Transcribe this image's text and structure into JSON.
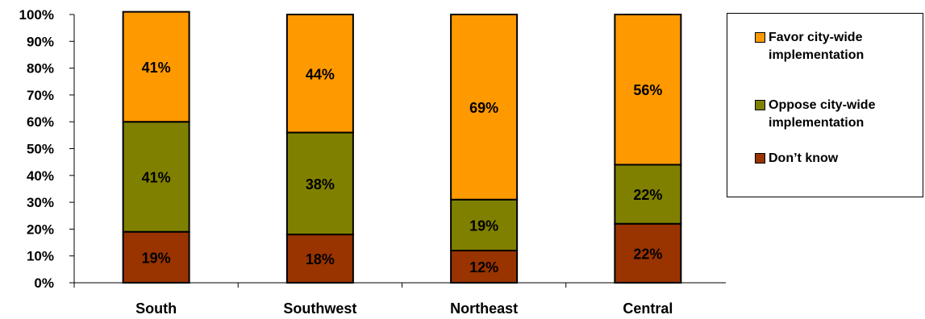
{
  "chart_data": {
    "type": "bar",
    "stacked": true,
    "categories": [
      "South",
      "Southwest",
      "Northeast",
      "Central"
    ],
    "series": [
      {
        "name": "Don’t know",
        "values": [
          19,
          18,
          12,
          22
        ],
        "labels": [
          "19%",
          "18%",
          "12%",
          "22%"
        ],
        "color": "#993300"
      },
      {
        "name": "Oppose city-wide implementation",
        "values": [
          41,
          38,
          19,
          22
        ],
        "labels": [
          "41%",
          "38%",
          "19%",
          "22%"
        ],
        "color": "#808000"
      },
      {
        "name": "Favor city-wide implementation",
        "values": [
          41,
          44,
          69,
          56
        ],
        "labels": [
          "41%",
          "44%",
          "69%",
          "56%"
        ],
        "color": "#FF9900"
      }
    ],
    "yticks": [
      "0%",
      "10%",
      "20%",
      "30%",
      "40%",
      "50%",
      "60%",
      "70%",
      "80%",
      "90%",
      "100%"
    ],
    "ylim": [
      0,
      100
    ],
    "title": "",
    "xlabel": "",
    "ylabel": "",
    "grid": false,
    "legend_position": "right"
  },
  "legend": {
    "items": [
      {
        "label": "Favor city-wide implementation",
        "color": "#FF9900"
      },
      {
        "label": "Oppose city-wide implementation",
        "color": "#808000"
      },
      {
        "label": "Don’t know",
        "color": "#993300"
      }
    ]
  }
}
